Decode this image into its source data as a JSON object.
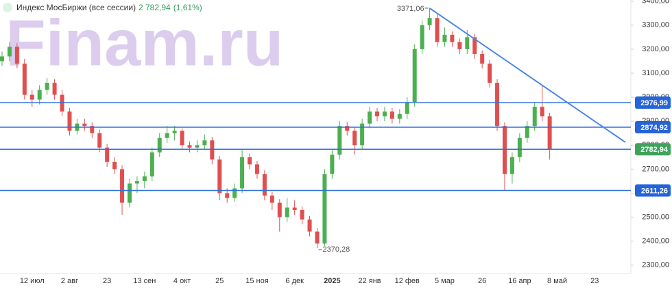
{
  "chart_data": {
    "type": "candlestick",
    "title": "Индекс МосБиржи (все сессии)",
    "last": "2 782,94",
    "change": "(1,61%)",
    "watermark": "Finam.ru",
    "up_color": "#4caf50",
    "down_color": "#e04f4f",
    "categories": [
      null,
      null,
      null,
      null,
      "12 июл",
      null,
      null,
      null,
      null,
      "2 авг",
      null,
      null,
      null,
      null,
      "23",
      null,
      null,
      null,
      null,
      "13 сен",
      null,
      null,
      null,
      null,
      "4 окт",
      null,
      null,
      null,
      null,
      "25",
      null,
      null,
      null,
      null,
      "15 ноя",
      null,
      null,
      null,
      null,
      "6 дек",
      null,
      null,
      null,
      null,
      "2025",
      null,
      null,
      null,
      null,
      "22 янв",
      null,
      null,
      null,
      null,
      "12 фев",
      null,
      null,
      null,
      null,
      "5 мар",
      null,
      null,
      null,
      null,
      "26",
      null,
      null,
      null,
      null,
      "16 апр",
      null,
      null,
      null,
      null,
      "8 май",
      null,
      null,
      null,
      null,
      "23",
      null,
      null,
      null
    ],
    "open": [
      3150,
      3170,
      3210,
      3140,
      3010,
      2990,
      3030,
      3060,
      3010,
      2940,
      2860,
      2890,
      2880,
      2850,
      2790,
      2730,
      2700,
      2560,
      2640,
      2650,
      2670,
      2770,
      2830,
      2850,
      2860,
      2800,
      2790,
      2800,
      2820,
      2740,
      2600,
      2580,
      2620,
      2750,
      2720,
      2680,
      2590,
      2560,
      2500,
      2540,
      2530,
      2490,
      2440,
      2390,
      2680,
      2760,
      2880,
      2860,
      2800,
      2890,
      2940,
      2920,
      2940,
      2910,
      2930,
      2980,
      3200,
      3300,
      3330,
      3230,
      3260,
      3230,
      3200,
      3250,
      3180,
      3140,
      3060,
      2880,
      2680,
      2750,
      2830,
      2880,
      2960,
      2920,
      null,
      null,
      null,
      null,
      null,
      null,
      null,
      null,
      null
    ],
    "high": [
      3190,
      3230,
      3225,
      3160,
      3030,
      3050,
      3080,
      3075,
      3030,
      2955,
      2910,
      2910,
      2895,
      2865,
      2805,
      2750,
      2715,
      2660,
      2670,
      2690,
      2790,
      2850,
      2880,
      2880,
      2870,
      2815,
      2820,
      2845,
      2835,
      2755,
      2620,
      2640,
      2780,
      2765,
      2735,
      2695,
      2605,
      2575,
      2580,
      2570,
      2545,
      2505,
      2455,
      2700,
      2780,
      2900,
      2895,
      2875,
      2910,
      2960,
      2955,
      2960,
      2955,
      2950,
      3000,
      3220,
      3320,
      3371.06,
      3345,
      3290,
      3275,
      3245,
      3280,
      3265,
      3195,
      3155,
      3075,
      2895,
      2770,
      2850,
      2900,
      2980,
      3050,
      2935,
      null,
      null,
      null,
      null,
      null,
      null,
      null,
      null,
      null
    ],
    "low": [
      3130,
      3150,
      3120,
      2990,
      2960,
      2970,
      3010,
      2990,
      2920,
      2840,
      2845,
      2860,
      2830,
      2770,
      2710,
      2680,
      2510,
      2540,
      2600,
      2620,
      2650,
      2750,
      2810,
      2820,
      2780,
      2770,
      2770,
      2780,
      2720,
      2570,
      2560,
      2565,
      2600,
      2700,
      2660,
      2570,
      2530,
      2440,
      2480,
      2510,
      2470,
      2420,
      2370.28,
      2380,
      2660,
      2740,
      2840,
      2760,
      2780,
      2870,
      2900,
      2900,
      2890,
      2890,
      2910,
      2960,
      3180,
      3280,
      3210,
      3210,
      3210,
      3180,
      3180,
      3160,
      3120,
      3040,
      2860,
      2610,
      2640,
      2730,
      2810,
      2860,
      2900,
      2740,
      null,
      null,
      null,
      null,
      null,
      null,
      null,
      null,
      null
    ],
    "close": [
      3170,
      3210,
      3140,
      3010,
      2990,
      3030,
      3060,
      3010,
      2940,
      2860,
      2890,
      2880,
      2850,
      2790,
      2730,
      2700,
      2560,
      2640,
      2650,
      2670,
      2770,
      2830,
      2850,
      2860,
      2800,
      2790,
      2800,
      2820,
      2740,
      2600,
      2580,
      2620,
      2750,
      2720,
      2680,
      2590,
      2560,
      2500,
      2540,
      2530,
      2490,
      2440,
      2390,
      2680,
      2760,
      2880,
      2860,
      2800,
      2890,
      2940,
      2920,
      2940,
      2910,
      2930,
      2980,
      3200,
      3300,
      3330,
      3230,
      3260,
      3230,
      3200,
      3250,
      3180,
      3140,
      3060,
      2880,
      2680,
      2750,
      2830,
      2880,
      2960,
      2920,
      2782.94,
      null,
      null,
      null,
      null,
      null,
      null,
      null,
      null,
      null
    ],
    "ylim": [
      2265,
      3405
    ],
    "yticks": [
      {
        "value": 2300,
        "label": "2300,00"
      },
      {
        "value": 2400,
        "label": "2400,00"
      },
      {
        "value": 2500,
        "label": "2500,00"
      },
      {
        "value": 2600,
        "label": "2600,00"
      },
      {
        "value": 2700,
        "label": "2700,00"
      },
      {
        "value": 2800,
        "label": "2800,00"
      },
      {
        "value": 2900,
        "label": "2900,00"
      },
      {
        "value": 3000,
        "label": "3000,00"
      },
      {
        "value": 3100,
        "label": "3100,00"
      },
      {
        "value": 3200,
        "label": "3200,00"
      },
      {
        "value": 3300,
        "label": "3300,00"
      },
      {
        "value": 3400,
        "label": "3400,00"
      }
    ],
    "levels": [
      {
        "value": 2976.99,
        "label": "2976,99",
        "color": "#2563d8"
      },
      {
        "value": 2874.92,
        "label": "2874,92",
        "color": "#2563d8"
      },
      {
        "value": 2782.94,
        "label": "2782,94",
        "color": "#3fa35b"
      },
      {
        "value": 2611.26,
        "label": "2611,26",
        "color": "#2563d8"
      }
    ],
    "level_line_color": "#2f6fde",
    "annotations": {
      "high": "3371,06",
      "low": "2370,28"
    },
    "trend_line": {
      "start": 3371.06,
      "end": 2812,
      "color": "#4a86e8"
    }
  }
}
